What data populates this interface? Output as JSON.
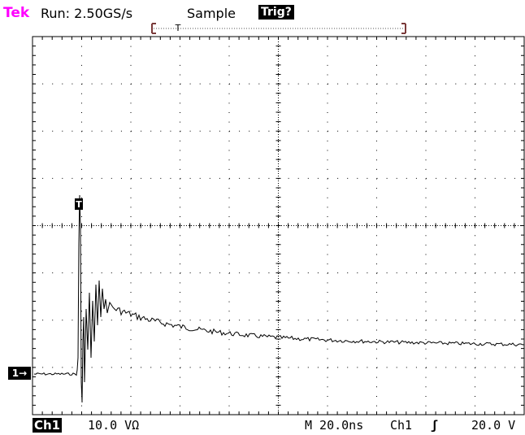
{
  "header": {
    "brand": "Tek",
    "run_status": "Run: 2.50GS/s",
    "acquisition_mode": "Sample",
    "trigger_status": "Trig?",
    "trigger_marker": "T"
  },
  "graticule": {
    "horizontal_divisions": 10,
    "vertical_divisions": 8,
    "minor_ticks_per_division": 5
  },
  "trace": {
    "channel_marker": "1→",
    "trigger_position_marker": "T",
    "color": "#000000"
  },
  "footer": {
    "channel": "Ch1",
    "vertical_scale": "10.0 VΩ",
    "timebase": "M 20.0ns",
    "trigger_source": "Ch1",
    "trigger_slope": "ʃ",
    "trigger_level": "20.0 V"
  },
  "colors": {
    "brand": "#ff00ff",
    "background": "#ffffff",
    "graticule": "#000000",
    "record_bar": "#7a3a3a"
  }
}
